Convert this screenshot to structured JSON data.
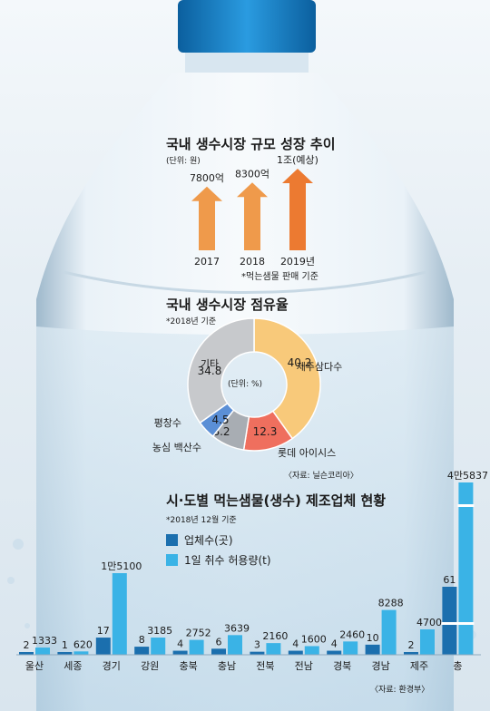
{
  "colors": {
    "arrow": "#ef9a4b",
    "arrow_highlight": "#ec7a31",
    "pie_jeju": "#f8c97a",
    "pie_lotte": "#ef6f5e",
    "pie_nongshim": "#a8adb3",
    "pie_pyeongchang": "#5b8fd6",
    "pie_others": "#c7c9cc",
    "bar_companies": "#1b6fae",
    "bar_capacity": "#3ab3e6",
    "cap": "#0f7fc9"
  },
  "section1": {
    "title": "국내 생수시장 규모 성장 추이",
    "unit": "(단위: 원)",
    "note": "*먹는샘물 판매 기준",
    "chart_data": {
      "type": "bar",
      "categories": [
        "2017",
        "2018",
        "2019년"
      ],
      "values": [
        7800,
        8300,
        10000
      ],
      "value_labels": [
        "7800억",
        "8300억",
        "1조(예상)"
      ],
      "unit": "억원"
    }
  },
  "section2": {
    "title": "국내 생수시장 점유율",
    "note": "*2018년 기준",
    "center_label": "(단위: %)",
    "source": "〈자료: 닐슨코리아〉",
    "chart_data": {
      "type": "pie",
      "slices": [
        {
          "name": "제주삼다수",
          "value": 40.2,
          "color_key": "pie_jeju"
        },
        {
          "name": "롯데 아이시스",
          "value": 12.3,
          "color_key": "pie_lotte"
        },
        {
          "name": "농심 백산수",
          "value": 8.2,
          "color_key": "pie_nongshim"
        },
        {
          "name": "평창수",
          "value": 4.5,
          "color_key": "pie_pyeongchang"
        },
        {
          "name": "기타",
          "value": 34.8,
          "color_key": "pie_others"
        }
      ]
    }
  },
  "section3": {
    "title": "시·도별 먹는샘물(생수) 제조업체 현황",
    "note": "*2018년 12월 기준",
    "source": "〈자료: 환경부〉",
    "legend": [
      "업체수(곳)",
      "1일 취수 허용량(t)"
    ],
    "chart_data": {
      "type": "bar",
      "categories": [
        "울산",
        "세종",
        "경기",
        "강원",
        "충북",
        "충남",
        "전북",
        "전남",
        "경북",
        "경남",
        "제주",
        "총"
      ],
      "series": [
        {
          "name": "업체수(곳)",
          "values": [
            2,
            1,
            17,
            8,
            4,
            6,
            3,
            4,
            4,
            10,
            2,
            61
          ],
          "labels": [
            "2",
            "1",
            "17",
            "8",
            "4",
            "6",
            "3",
            "4",
            "4",
            "10",
            "2",
            "61"
          ]
        },
        {
          "name": "1일 취수 허용량(t)",
          "values": [
            1333,
            620,
            15100,
            3185,
            2752,
            3639,
            2160,
            1600,
            2460,
            8288,
            4700,
            45837
          ],
          "labels": [
            "1333",
            "620",
            "1만5100",
            "3185",
            "2752",
            "3639",
            "2160",
            "1600",
            "2460",
            "8288",
            "4700",
            "4만5837"
          ]
        }
      ]
    }
  }
}
